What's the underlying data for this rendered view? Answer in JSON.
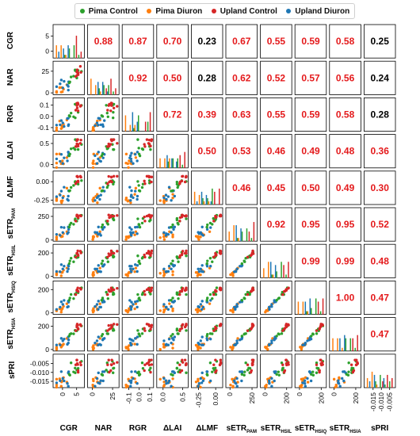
{
  "legend": {
    "items": [
      {
        "label": "Pima Control",
        "color": "#2ca02c"
      },
      {
        "label": "Pima Diuron",
        "color": "#ff7f0e"
      },
      {
        "label": "Upland Control",
        "color": "#d62728"
      },
      {
        "label": "Upland Diuron",
        "color": "#1f77b4"
      }
    ]
  },
  "chart_data": {
    "type": "scatter-matrix",
    "variables": [
      {
        "id": "CGR",
        "label": "CGR",
        "sub": "",
        "range": [
          -2.5,
          7.5
        ],
        "ticks": [
          0,
          5
        ],
        "tick_labels": [
          "0",
          "5"
        ]
      },
      {
        "id": "NAR",
        "label": "NAR",
        "sub": "",
        "range": [
          -3,
          32
        ],
        "ticks": [
          0,
          25
        ],
        "tick_labels": [
          "0",
          "25"
        ]
      },
      {
        "id": "RGR",
        "label": "RGR",
        "sub": "",
        "range": [
          -0.14,
          0.13
        ],
        "ticks": [
          -0.1,
          0.0,
          0.1
        ],
        "tick_labels": [
          "-0.1",
          "0.0",
          "0.1"
        ]
      },
      {
        "id": "dLAI",
        "label": "ΔLAI",
        "sub": "",
        "range": [
          -0.1,
          0.62
        ],
        "ticks": [
          0.0,
          0.5
        ],
        "tick_labels": [
          "0.0",
          "0.5"
        ]
      },
      {
        "id": "dLMF",
        "label": "ΔLMF",
        "sub": "",
        "range": [
          -0.32,
          0.09
        ],
        "ticks": [
          -0.25,
          0.0
        ],
        "tick_labels": [
          "-0.25",
          "0.00"
        ]
      },
      {
        "id": "sETR_PAM",
        "label": "sETR",
        "sub": "PAM",
        "range": [
          -20,
          300
        ],
        "ticks": [
          0,
          250
        ],
        "tick_labels": [
          "0",
          "250"
        ]
      },
      {
        "id": "sETR_HSIL",
        "label": "sETR",
        "sub": "HSIL",
        "range": [
          -20,
          240
        ],
        "ticks": [
          0,
          200
        ],
        "tick_labels": [
          "0",
          "200"
        ]
      },
      {
        "id": "sETR_HSIQ",
        "label": "sETR",
        "sub": "HSIQ",
        "range": [
          -20,
          240
        ],
        "ticks": [
          0,
          200
        ],
        "tick_labels": [
          "0",
          "200"
        ]
      },
      {
        "id": "sETR_HSIA",
        "label": "sETR",
        "sub": "HSIA",
        "range": [
          -20,
          240
        ],
        "ticks": [
          0,
          200
        ],
        "tick_labels": [
          "0",
          "200"
        ]
      },
      {
        "id": "sPRI",
        "label": "sPRI",
        "sub": "",
        "range": [
          -0.019,
          -0.002
        ],
        "ticks": [
          -0.015,
          -0.01,
          -0.005
        ],
        "tick_labels": [
          "-0.015",
          "-0.010",
          "-0.005"
        ]
      }
    ],
    "groups": [
      "Pima Control",
      "Pima Diuron",
      "Upland Control",
      "Upland Diuron"
    ],
    "correlations": [
      [
        null,
        0.88,
        0.87,
        0.7,
        0.23,
        0.67,
        0.55,
        0.59,
        0.58,
        0.25
      ],
      [
        null,
        null,
        0.92,
        0.5,
        0.28,
        0.62,
        0.52,
        0.57,
        0.56,
        0.24
      ],
      [
        null,
        null,
        null,
        0.72,
        0.39,
        0.63,
        0.55,
        0.59,
        0.58,
        0.28
      ],
      [
        null,
        null,
        null,
        null,
        0.5,
        0.53,
        0.46,
        0.49,
        0.48,
        0.36
      ],
      [
        null,
        null,
        null,
        null,
        null,
        0.46,
        0.45,
        0.5,
        0.49,
        0.3
      ],
      [
        null,
        null,
        null,
        null,
        null,
        null,
        0.92,
        0.95,
        0.95,
        0.52
      ],
      [
        null,
        null,
        null,
        null,
        null,
        null,
        null,
        0.99,
        0.99,
        0.48
      ],
      [
        null,
        null,
        null,
        null,
        null,
        null,
        null,
        null,
        1.0,
        0.47
      ],
      [
        null,
        null,
        null,
        null,
        null,
        null,
        null,
        null,
        null,
        0.47
      ],
      [
        null,
        null,
        null,
        null,
        null,
        null,
        null,
        null,
        null,
        null
      ]
    ],
    "significant_color": "#e41a1c",
    "nonsignificant_color": "#000000",
    "significance_threshold": 0.3
  }
}
